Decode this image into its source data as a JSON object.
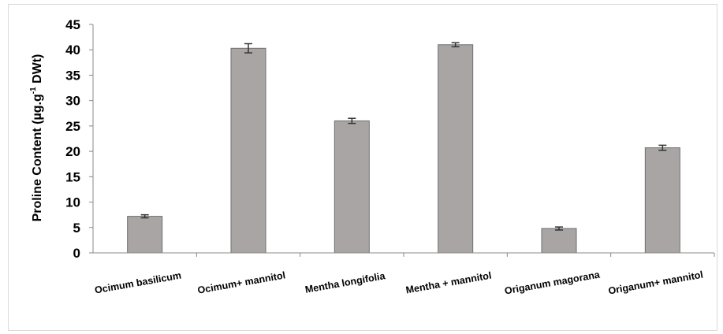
{
  "chart_data": {
    "type": "bar",
    "title": "",
    "xlabel": "",
    "ylabel": "Proline Content (µg.g",
    "ylabel_superscript": "-1",
    "ylabel_suffix": " DWt)",
    "ylim": [
      0,
      45
    ],
    "ytick_step": 5,
    "yticks": [
      "0",
      "5",
      "10",
      "15",
      "20",
      "25",
      "30",
      "35",
      "40",
      "45"
    ],
    "categories": [
      "Ocimum basilicum",
      "Ocimum+ mannitol",
      "Mentha longifolia",
      "Mentha + mannitol",
      "Origanum magorana",
      "Origanum+ mannitol"
    ],
    "values": [
      7.2,
      40.3,
      26.0,
      41.0,
      4.8,
      20.7
    ],
    "errors": [
      0.3,
      0.9,
      0.5,
      0.4,
      0.3,
      0.5
    ],
    "bar_color": "#aaa5a5",
    "bar_edge_color": "#6e6e6e",
    "grid": false,
    "legend": "none"
  }
}
